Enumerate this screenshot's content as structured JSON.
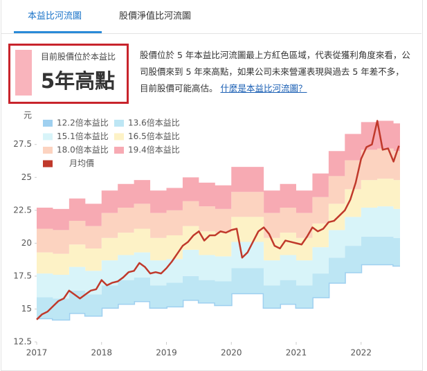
{
  "tabs": [
    "本益比河流圖",
    "股價淨值比河流圖"
  ],
  "badge": {
    "caption": "目前股價位於本益比",
    "value": "5年高點"
  },
  "description": {
    "text": "股價位於 5 年本益比河流圖最上方紅色區域，代表從獲利角度來看，公司股價來到 5 年來高點，如果公司未來營運表現與過去 5 年差不多，目前股價可能高估。",
    "link": "什麼是本益比河流圖？"
  },
  "chart_data": {
    "type": "river",
    "y_unit": "元",
    "legend": "top-left",
    "xlim": [
      2017,
      2022.6
    ],
    "xticks": [
      2017,
      2018,
      2019,
      2020,
      2021,
      2022
    ],
    "ylim": [
      12.5,
      29.8
    ],
    "yticks": [
      12.5,
      15,
      17.5,
      20,
      22.5,
      25,
      27.5
    ],
    "x": [
      2017,
      2017.25,
      2017.5,
      2017.75,
      2018,
      2018.25,
      2018.5,
      2018.75,
      2019,
      2019.25,
      2019.5,
      2019.75,
      2020,
      2020.25,
      2020.5,
      2020.75,
      2021,
      2021.25,
      2021.5,
      2021.75,
      2022,
      2022.25,
      2022.5
    ],
    "series": [
      {
        "name": "12.2倍本益比",
        "color": "#9fd0f0",
        "values": [
          14.3,
          14.2,
          14.7,
          14.5,
          15.1,
          15.4,
          15.6,
          15.1,
          15.2,
          15.7,
          15.5,
          15.3,
          16.2,
          16.2,
          15.1,
          15.4,
          15.1,
          15.9,
          17.0,
          17.8,
          18.4,
          18.4,
          18.3
        ]
      },
      {
        "name": "13.6倍本益比",
        "color": "#bde6f4",
        "values": [
          15.9,
          15.8,
          16.4,
          16.1,
          16.8,
          17.2,
          17.4,
          16.8,
          17.0,
          17.5,
          17.2,
          17.1,
          18.1,
          18.1,
          16.8,
          17.2,
          16.8,
          17.7,
          18.9,
          19.8,
          20.5,
          20.5,
          20.4
        ]
      },
      {
        "name": "15.1倍本益比",
        "color": "#d8f4f9",
        "values": [
          17.7,
          17.6,
          18.2,
          17.9,
          18.7,
          19.1,
          19.3,
          18.7,
          18.8,
          19.5,
          19.1,
          19.0,
          20.1,
          20.1,
          18.7,
          19.1,
          18.7,
          19.7,
          21.0,
          22.0,
          22.7,
          22.8,
          22.6
        ]
      },
      {
        "name": "16.5倍本益比",
        "color": "#fdf2c6",
        "values": [
          19.3,
          19.2,
          19.9,
          19.6,
          20.4,
          20.8,
          21.1,
          20.4,
          20.6,
          21.3,
          20.9,
          20.8,
          22.0,
          22.0,
          20.4,
          20.8,
          20.4,
          21.5,
          23.0,
          24.1,
          24.8,
          24.9,
          24.8
        ]
      },
      {
        "name": "18.0倍本益比",
        "color": "#fcd3c0",
        "values": [
          21.1,
          21.0,
          21.7,
          21.3,
          22.3,
          22.7,
          23.0,
          22.3,
          22.5,
          23.2,
          22.8,
          22.6,
          23.9,
          23.9,
          22.3,
          22.7,
          22.3,
          23.5,
          25.1,
          26.3,
          27.1,
          27.2,
          27.0
        ]
      },
      {
        "name": "19.4倍本益比",
        "color": "#f7aab3",
        "values": [
          22.7,
          22.6,
          23.4,
          23.0,
          24.0,
          24.5,
          24.8,
          24.0,
          24.2,
          25.0,
          24.6,
          24.4,
          25.8,
          25.8,
          24.0,
          24.5,
          24.0,
          25.3,
          27.0,
          28.3,
          29.2,
          29.3,
          29.1
        ]
      },
      {
        "name": "月均價",
        "color": "#c0392b",
        "x": [
          2017,
          2017.083,
          2017.167,
          2017.25,
          2017.333,
          2017.417,
          2017.5,
          2017.583,
          2017.667,
          2017.75,
          2017.833,
          2017.917,
          2018,
          2018.083,
          2018.167,
          2018.25,
          2018.333,
          2018.417,
          2018.5,
          2018.583,
          2018.667,
          2018.75,
          2018.833,
          2018.917,
          2019,
          2019.083,
          2019.167,
          2019.25,
          2019.333,
          2019.417,
          2019.5,
          2019.583,
          2019.667,
          2019.75,
          2019.833,
          2019.917,
          2020,
          2020.083,
          2020.167,
          2020.25,
          2020.333,
          2020.417,
          2020.5,
          2020.583,
          2020.667,
          2020.75,
          2020.833,
          2020.917,
          2021,
          2021.083,
          2021.167,
          2021.25,
          2021.333,
          2021.417,
          2021.5,
          2021.583,
          2021.667,
          2021.75,
          2021.833,
          2021.917,
          2022,
          2022.083,
          2022.167,
          2022.25,
          2022.333,
          2022.417,
          2022.5,
          2022.583
        ],
        "values": [
          14.2,
          14.6,
          14.8,
          15.2,
          15.6,
          15.8,
          16.4,
          16.1,
          15.8,
          16.1,
          16.4,
          16.5,
          17.2,
          16.8,
          17.0,
          17.1,
          17.4,
          17.8,
          17.9,
          18.5,
          18.2,
          17.7,
          17.8,
          17.7,
          18.1,
          18.6,
          19.2,
          19.8,
          20.1,
          20.6,
          20.9,
          20.2,
          20.6,
          20.6,
          20.9,
          20.8,
          21.0,
          21.1,
          18.9,
          19.3,
          20.1,
          20.9,
          21.2,
          20.7,
          19.8,
          19.6,
          20.2,
          20.1,
          20.0,
          19.9,
          20.5,
          21.2,
          20.9,
          21.1,
          21.6,
          21.7,
          22.1,
          22.5,
          23.3,
          24.6,
          26.4,
          27.3,
          27.5,
          29.3,
          27.1,
          27.2,
          26.2,
          27.4
        ]
      }
    ]
  }
}
